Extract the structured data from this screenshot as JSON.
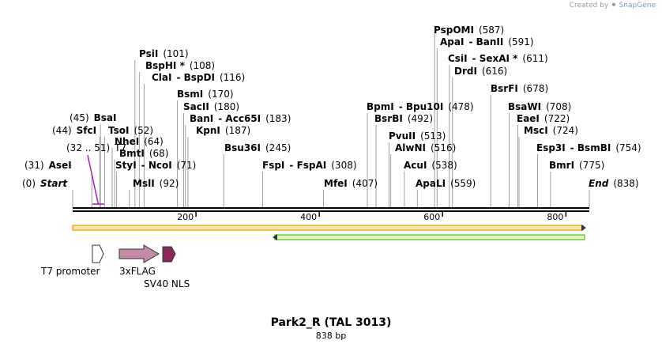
{
  "app": {
    "credit_prefix": "Created by",
    "credit_brand": "SnapGene"
  },
  "map": {
    "title": "Park2_R (TAL 3013)",
    "length_label": "838 bp",
    "length": 838
  },
  "colors": {
    "backbone": "#000000",
    "orange_bar": "#f5a623",
    "orange_fill": "#fbe6b4",
    "green_bar": "#6fcf3b",
    "t7_label": "#a020c0",
    "flag": "#c48aa6",
    "nls": "#8a2a5a",
    "promoter": "#ffffff"
  },
  "ticks": [
    {
      "pos": 200,
      "label": "200"
    },
    {
      "pos": 400,
      "label": "400"
    },
    {
      "pos": 600,
      "label": "600"
    },
    {
      "pos": 800,
      "label": "800"
    }
  ],
  "sites": [
    {
      "segs": [
        {
          "t": "(0)",
          "s": "pos"
        },
        {
          "t": "Start",
          "s": "bi"
        }
      ],
      "pos": 0
    },
    {
      "segs": [
        {
          "t": "(31)",
          "s": "pos"
        },
        {
          "t": "AseI",
          "s": "b"
        }
      ],
      "pos": 31
    },
    {
      "segs": [
        {
          "t": "(32 .. 51)",
          "s": "t7"
        },
        {
          "t": "T7",
          "s": "t7"
        }
      ],
      "pos": 41
    },
    {
      "segs": [
        {
          "t": "(44)",
          "s": "pos"
        },
        {
          "t": "SfcI",
          "s": "b"
        }
      ],
      "pos": 44
    },
    {
      "segs": [
        {
          "t": "(45)",
          "s": "pos"
        },
        {
          "t": "BsaI",
          "s": "b"
        }
      ],
      "pos": 45
    },
    {
      "segs": [
        {
          "t": "TsoI",
          "s": "b"
        },
        {
          "t": "(52)",
          "s": "pos"
        }
      ],
      "pos": 52
    },
    {
      "segs": [
        {
          "t": "NheI",
          "s": "b"
        },
        {
          "t": "(64)",
          "s": "pos"
        }
      ],
      "pos": 64
    },
    {
      "segs": [
        {
          "t": "BmtI",
          "s": "b"
        },
        {
          "t": "(68)",
          "s": "pos"
        }
      ],
      "pos": 68
    },
    {
      "segs": [
        {
          "t": "StyI",
          "s": "b"
        },
        {
          "t": "- NcoI",
          "s": "b"
        },
        {
          "t": "(71)",
          "s": "pos"
        }
      ],
      "pos": 71
    },
    {
      "segs": [
        {
          "t": "MslI",
          "s": "b"
        },
        {
          "t": "(92)",
          "s": "pos"
        }
      ],
      "pos": 92
    },
    {
      "segs": [
        {
          "t": "PsiI",
          "s": "b"
        },
        {
          "t": "(101)",
          "s": "pos"
        }
      ],
      "pos": 101
    },
    {
      "segs": [
        {
          "t": "BspHI *",
          "s": "b"
        },
        {
          "t": "(108)",
          "s": "pos"
        }
      ],
      "pos": 108
    },
    {
      "segs": [
        {
          "t": "ClaI",
          "s": "b"
        },
        {
          "t": "- BspDI",
          "s": "b"
        },
        {
          "t": "(116)",
          "s": "pos"
        }
      ],
      "pos": 116
    },
    {
      "segs": [
        {
          "t": "BsmI",
          "s": "b"
        },
        {
          "t": "(170)",
          "s": "pos"
        }
      ],
      "pos": 170
    },
    {
      "segs": [
        {
          "t": "SacII",
          "s": "b"
        },
        {
          "t": "(180)",
          "s": "pos"
        }
      ],
      "pos": 180
    },
    {
      "segs": [
        {
          "t": "BanI",
          "s": "b"
        },
        {
          "t": "- Acc65I",
          "s": "b"
        },
        {
          "t": "(183)",
          "s": "pos"
        }
      ],
      "pos": 183
    },
    {
      "segs": [
        {
          "t": "KpnI",
          "s": "b"
        },
        {
          "t": "(187)",
          "s": "pos"
        }
      ],
      "pos": 187
    },
    {
      "segs": [
        {
          "t": "Bsu36I",
          "s": "b"
        },
        {
          "t": "(245)",
          "s": "pos"
        }
      ],
      "pos": 245
    },
    {
      "segs": [
        {
          "t": "FspI",
          "s": "b"
        },
        {
          "t": "- FspAI",
          "s": "b"
        },
        {
          "t": "(308)",
          "s": "pos"
        }
      ],
      "pos": 308
    },
    {
      "segs": [
        {
          "t": "MfeI",
          "s": "b"
        },
        {
          "t": "(407)",
          "s": "pos"
        }
      ],
      "pos": 407
    },
    {
      "segs": [
        {
          "t": "BpmI",
          "s": "b"
        },
        {
          "t": "- Bpu10I",
          "s": "b"
        },
        {
          "t": "(478)",
          "s": "pos"
        }
      ],
      "pos": 478
    },
    {
      "segs": [
        {
          "t": "BsrBI",
          "s": "b"
        },
        {
          "t": "(492)",
          "s": "pos"
        }
      ],
      "pos": 492
    },
    {
      "segs": [
        {
          "t": "PvuII",
          "s": "b"
        },
        {
          "t": "(513)",
          "s": "pos"
        }
      ],
      "pos": 513
    },
    {
      "segs": [
        {
          "t": "AlwNI",
          "s": "b"
        },
        {
          "t": "(516)",
          "s": "pos"
        }
      ],
      "pos": 516
    },
    {
      "segs": [
        {
          "t": "AcuI",
          "s": "b"
        },
        {
          "t": "(538)",
          "s": "pos"
        }
      ],
      "pos": 538
    },
    {
      "segs": [
        {
          "t": "ApaLI",
          "s": "b"
        },
        {
          "t": "(559)",
          "s": "pos"
        }
      ],
      "pos": 559
    },
    {
      "segs": [
        {
          "t": "PspOMI",
          "s": "b"
        },
        {
          "t": "(587)",
          "s": "pos"
        }
      ],
      "pos": 587
    },
    {
      "segs": [
        {
          "t": "ApaI",
          "s": "b"
        },
        {
          "t": "- BanII",
          "s": "b"
        },
        {
          "t": "(591)",
          "s": "pos"
        }
      ],
      "pos": 591
    },
    {
      "segs": [
        {
          "t": "CsiI",
          "s": "b"
        },
        {
          "t": "- SexAI *",
          "s": "b"
        },
        {
          "t": "(611)",
          "s": "pos"
        }
      ],
      "pos": 611
    },
    {
      "segs": [
        {
          "t": "DrdI",
          "s": "b"
        },
        {
          "t": "(616)",
          "s": "pos"
        }
      ],
      "pos": 616
    },
    {
      "segs": [
        {
          "t": "BsrFI",
          "s": "b"
        },
        {
          "t": "(678)",
          "s": "pos"
        }
      ],
      "pos": 678
    },
    {
      "segs": [
        {
          "t": "BsaWI",
          "s": "b"
        },
        {
          "t": "(708)",
          "s": "pos"
        }
      ],
      "pos": 708
    },
    {
      "segs": [
        {
          "t": "EaeI",
          "s": "b"
        },
        {
          "t": "(722)",
          "s": "pos"
        }
      ],
      "pos": 722
    },
    {
      "segs": [
        {
          "t": "MscI",
          "s": "b"
        },
        {
          "t": "(724)",
          "s": "pos"
        }
      ],
      "pos": 724
    },
    {
      "segs": [
        {
          "t": "Esp3I",
          "s": "b"
        },
        {
          "t": "- BsmBI",
          "s": "b"
        },
        {
          "t": "(754)",
          "s": "pos"
        }
      ],
      "pos": 754
    },
    {
      "segs": [
        {
          "t": "BmrI",
          "s": "b"
        },
        {
          "t": "(775)",
          "s": "pos"
        }
      ],
      "pos": 775
    },
    {
      "segs": [
        {
          "t": "End",
          "s": "bi"
        },
        {
          "t": "(838)",
          "s": "pos"
        }
      ],
      "pos": 838
    }
  ],
  "features": [
    {
      "label": "T7 promoter",
      "start": 32,
      "end": 51
    },
    {
      "label": "3xFLAG",
      "start": 70,
      "end": 135
    },
    {
      "label": "SV40 NLS",
      "start": 144,
      "end": 165
    }
  ]
}
